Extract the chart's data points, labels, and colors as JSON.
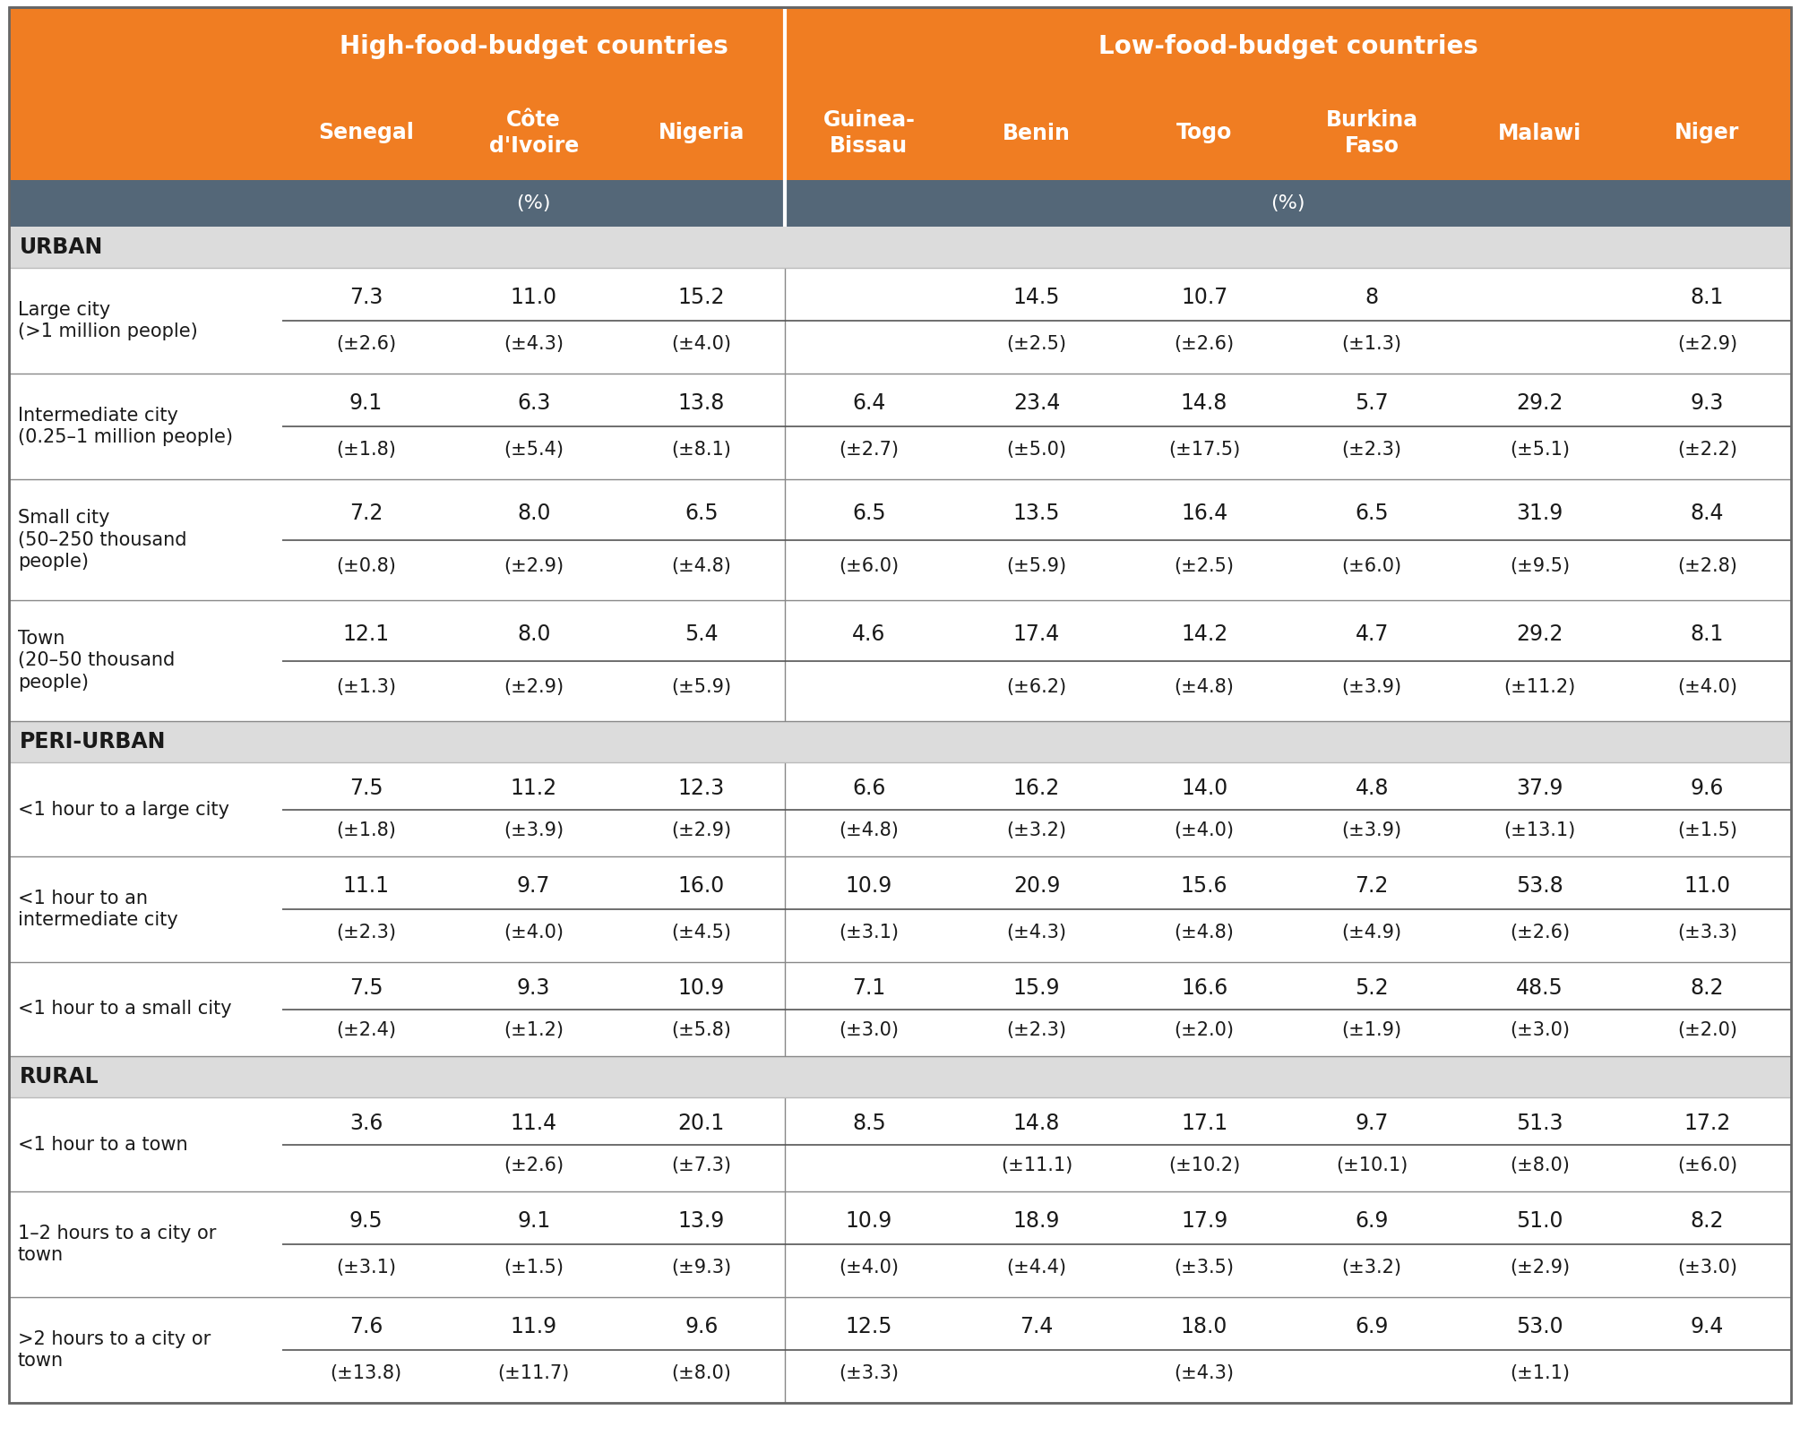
{
  "orange_color": "#F07D22",
  "dark_header_color": "#546778",
  "section_bg_color": "#DCDCDC",
  "white": "#FFFFFF",
  "black": "#1A1A1A",
  "line_color": "#AAAAAA",
  "header1_text": "High-food-budget countries",
  "header2_text": "Low-food-budget countries",
  "col_headers": [
    "Senegal",
    "Côte\nd'Ivoire",
    "Nigeria",
    "Guinea-\nBissau",
    "Benin",
    "Togo",
    "Burkina\nFaso",
    "Malawi",
    "Niger"
  ],
  "pct_label": "(%)",
  "sections": [
    {
      "name": "URBAN",
      "rows": [
        {
          "label": "Large city\n(>1 million people)",
          "values": [
            "7.3",
            "11.0",
            "15.2",
            "",
            "14.5",
            "10.7",
            "8",
            "",
            "8.1"
          ],
          "errors": [
            "(±2.6)",
            "(±4.3)",
            "(±4.0)",
            "",
            "(±2.5)",
            "(±2.6)",
            "(±1.3)",
            "",
            "(±2.9)"
          ]
        },
        {
          "label": "Intermediate city\n(0.25–1 million people)",
          "values": [
            "9.1",
            "6.3",
            "13.8",
            "6.4",
            "23.4",
            "14.8",
            "5.7",
            "29.2",
            "9.3"
          ],
          "errors": [
            "(±1.8)",
            "(±5.4)",
            "(±8.1)",
            "(±2.7)",
            "(±5.0)",
            "(±17.5)",
            "(±2.3)",
            "(±5.1)",
            "(±2.2)"
          ]
        },
        {
          "label": "Small city\n(50–250 thousand\npeople)",
          "values": [
            "7.2",
            "8.0",
            "6.5",
            "6.5",
            "13.5",
            "16.4",
            "6.5",
            "31.9",
            "8.4"
          ],
          "errors": [
            "(±0.8)",
            "(±2.9)",
            "(±4.8)",
            "(±6.0)",
            "(±5.9)",
            "(±2.5)",
            "(±6.0)",
            "(±9.5)",
            "(±2.8)"
          ]
        },
        {
          "label": "Town\n(20–50 thousand\npeople)",
          "values": [
            "12.1",
            "8.0",
            "5.4",
            "4.6",
            "17.4",
            "14.2",
            "4.7",
            "29.2",
            "8.1"
          ],
          "errors": [
            "(±1.3)",
            "(±2.9)",
            "(±5.9)",
            "",
            "(±6.2)",
            "(±4.8)",
            "(±3.9)",
            "(±11.2)",
            "(±4.0)"
          ]
        }
      ]
    },
    {
      "name": "PERI-URBAN",
      "rows": [
        {
          "label": "<1 hour to a large city",
          "values": [
            "7.5",
            "11.2",
            "12.3",
            "6.6",
            "16.2",
            "14.0",
            "4.8",
            "37.9",
            "9.6"
          ],
          "errors": [
            "(±1.8)",
            "(±3.9)",
            "(±2.9)",
            "(±4.8)",
            "(±3.2)",
            "(±4.0)",
            "(±3.9)",
            "(±13.1)",
            "(±1.5)"
          ]
        },
        {
          "label": "<1 hour to an\nintermediate city",
          "values": [
            "11.1",
            "9.7",
            "16.0",
            "10.9",
            "20.9",
            "15.6",
            "7.2",
            "53.8",
            "11.0"
          ],
          "errors": [
            "(±2.3)",
            "(±4.0)",
            "(±4.5)",
            "(±3.1)",
            "(±4.3)",
            "(±4.8)",
            "(±4.9)",
            "(±2.6)",
            "(±3.3)"
          ]
        },
        {
          "label": "<1 hour to a small city",
          "values": [
            "7.5",
            "9.3",
            "10.9",
            "7.1",
            "15.9",
            "16.6",
            "5.2",
            "48.5",
            "8.2"
          ],
          "errors": [
            "(±2.4)",
            "(±1.2)",
            "(±5.8)",
            "(±3.0)",
            "(±2.3)",
            "(±2.0)",
            "(±1.9)",
            "(±3.0)",
            "(±2.0)"
          ]
        }
      ]
    },
    {
      "name": "RURAL",
      "rows": [
        {
          "label": "<1 hour to a town",
          "values": [
            "3.6",
            "11.4",
            "20.1",
            "8.5",
            "14.8",
            "17.1",
            "9.7",
            "51.3",
            "17.2"
          ],
          "errors": [
            "",
            "(±2.6)",
            "(±7.3)",
            "",
            "(±11.1)",
            "(±10.2)",
            "(±10.1)",
            "(±8.0)",
            "(±6.0)"
          ]
        },
        {
          "label": "1–2 hours to a city or\ntown",
          "values": [
            "9.5",
            "9.1",
            "13.9",
            "10.9",
            "18.9",
            "17.9",
            "6.9",
            "51.0",
            "8.2"
          ],
          "errors": [
            "(±3.1)",
            "(±1.5)",
            "(±9.3)",
            "(±4.0)",
            "(±4.4)",
            "(±3.5)",
            "(±3.2)",
            "(±2.9)",
            "(±3.0)"
          ]
        },
        {
          "label": ">2 hours to a city or\ntown",
          "values": [
            "7.6",
            "11.9",
            "9.6",
            "12.5",
            "7.4",
            "18.0",
            "6.9",
            "53.0",
            "9.4"
          ],
          "errors": [
            "(±13.8)",
            "(±11.7)",
            "(±8.0)",
            "(±3.3)",
            "",
            "(±4.3)",
            "",
            "(±1.1)",
            ""
          ]
        }
      ]
    }
  ],
  "figsize": [
    20.09,
    16.22
  ],
  "dpi": 100
}
